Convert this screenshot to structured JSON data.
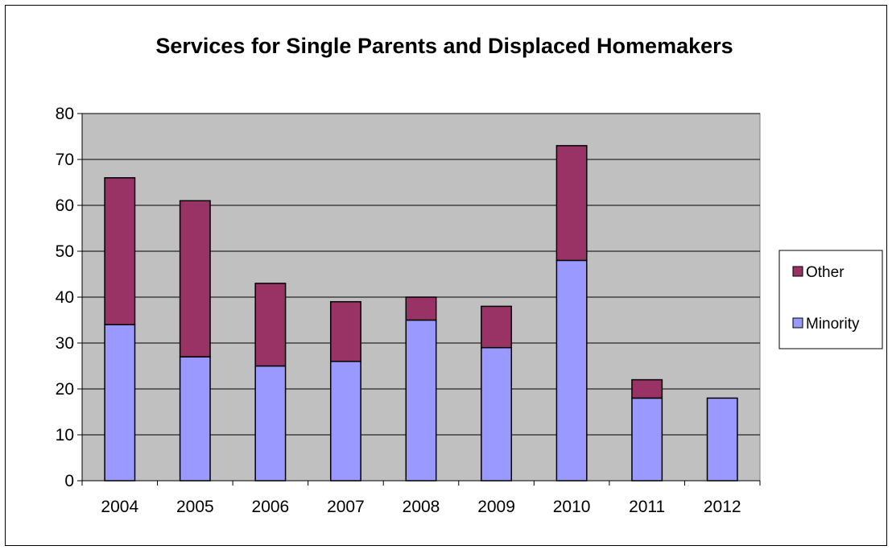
{
  "chart_data": {
    "type": "bar",
    "stacked": true,
    "title": "Services for Single Parents and Displaced Homemakers",
    "xlabel": "",
    "ylabel": "",
    "categories": [
      "2004",
      "2005",
      "2006",
      "2007",
      "2008",
      "2009",
      "2010",
      "2011",
      "2012"
    ],
    "series": [
      {
        "name": "Minority",
        "color": "#9999ff",
        "values": [
          34,
          27,
          25,
          26,
          35,
          29,
          48,
          18,
          18
        ]
      },
      {
        "name": "Other",
        "color": "#993366",
        "values": [
          32,
          34,
          18,
          13,
          5,
          9,
          25,
          4,
          0
        ]
      }
    ],
    "ylim": [
      0,
      80
    ],
    "yticks": [
      "0",
      "10",
      "20",
      "30",
      "40",
      "50",
      "60",
      "70",
      "80"
    ],
    "grid": true,
    "plot_background": "#c0c0c0",
    "legend": {
      "position": "right",
      "entries": [
        "Other",
        "Minority"
      ]
    }
  }
}
